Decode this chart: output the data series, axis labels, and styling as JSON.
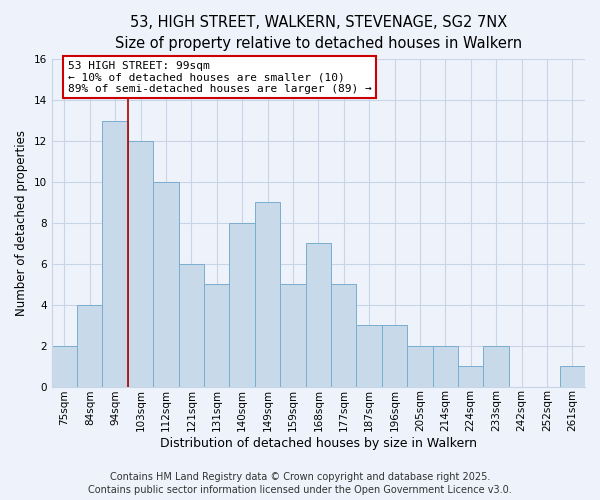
{
  "title": "53, HIGH STREET, WALKERN, STEVENAGE, SG2 7NX",
  "subtitle": "Size of property relative to detached houses in Walkern",
  "xlabel": "Distribution of detached houses by size in Walkern",
  "ylabel": "Number of detached properties",
  "categories": [
    "75sqm",
    "84sqm",
    "94sqm",
    "103sqm",
    "112sqm",
    "121sqm",
    "131sqm",
    "140sqm",
    "149sqm",
    "159sqm",
    "168sqm",
    "177sqm",
    "187sqm",
    "196sqm",
    "205sqm",
    "214sqm",
    "224sqm",
    "233sqm",
    "242sqm",
    "252sqm",
    "261sqm"
  ],
  "values": [
    2,
    4,
    13,
    12,
    10,
    6,
    5,
    8,
    9,
    5,
    7,
    5,
    3,
    3,
    2,
    2,
    1,
    2,
    0,
    0,
    1
  ],
  "bar_color": "#c8daea",
  "bar_edge_color": "#7aadd0",
  "vline_color": "#aa0000",
  "annotation_text": "53 HIGH STREET: 99sqm\n← 10% of detached houses are smaller (10)\n89% of semi-detached houses are larger (89) →",
  "annotation_box_facecolor": "#ffffff",
  "annotation_box_edgecolor": "#cc0000",
  "ylim": [
    0,
    16
  ],
  "yticks": [
    0,
    2,
    4,
    6,
    8,
    10,
    12,
    14,
    16
  ],
  "grid_color": "#c8d4e8",
  "background_color": "#eef2fa",
  "footer_line1": "Contains HM Land Registry data © Crown copyright and database right 2025.",
  "footer_line2": "Contains public sector information licensed under the Open Government Licence v3.0.",
  "title_fontsize": 10.5,
  "subtitle_fontsize": 9.5,
  "xlabel_fontsize": 9,
  "ylabel_fontsize": 8.5,
  "tick_fontsize": 7.5,
  "annotation_fontsize": 8,
  "footer_fontsize": 7
}
